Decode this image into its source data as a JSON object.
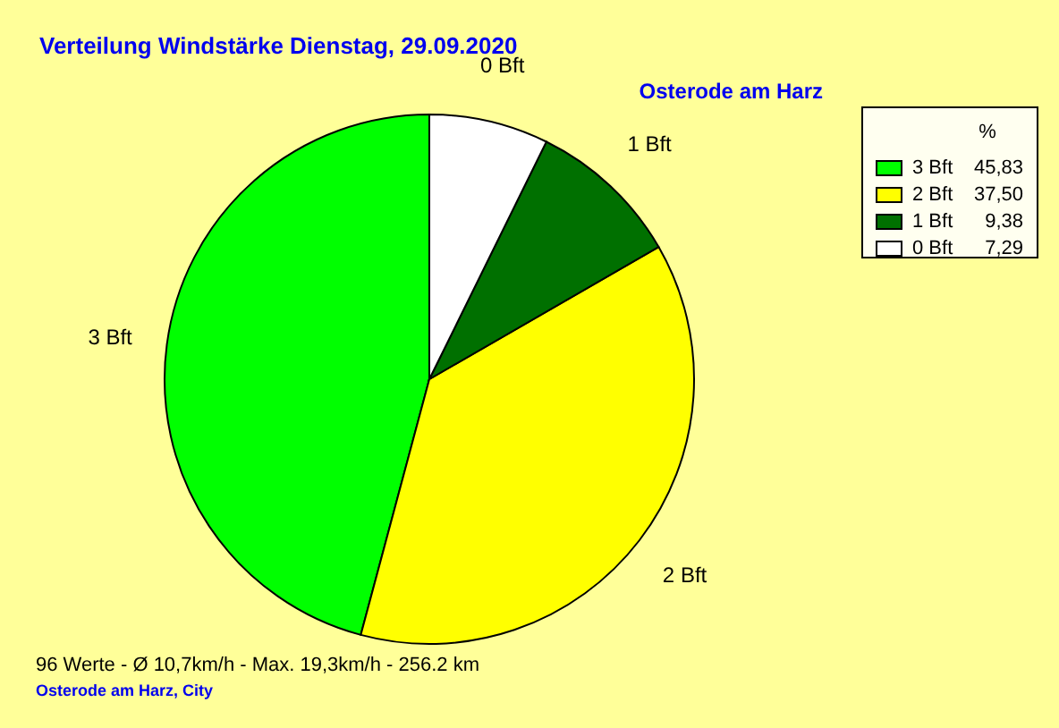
{
  "chart_data": {
    "type": "pie",
    "title": "Verteilung Windstärke  Dienstag, 29.09.2020",
    "subtitle": "Osterode am Harz",
    "legend_title": "%",
    "categories": [
      "3 Bft",
      "2 Bft",
      "1 Bft",
      "0 Bft"
    ],
    "values": [
      45.83,
      37.5,
      9.38,
      7.29
    ],
    "value_labels": [
      "45,83",
      "37,50",
      "9,38",
      "7,29"
    ],
    "colors": [
      "#00ff00",
      "#ffff00",
      "#007000",
      "#ffffff"
    ],
    "legend": "top right",
    "annotations": [
      "96 Werte   -   Ø 10,7km/h  -  Max. 19,3km/h   -   256.2 km",
      "Osterode am Harz, City"
    ]
  }
}
